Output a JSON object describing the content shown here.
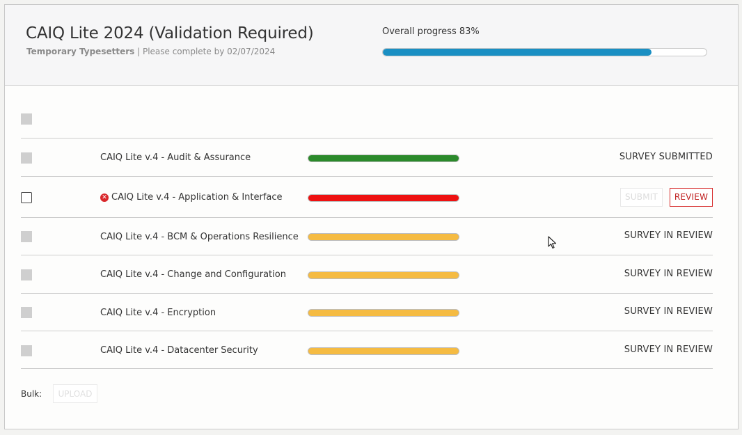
{
  "header": {
    "title": "CAIQ Lite 2024 (Validation Required)",
    "organization": "Temporary Typesetters",
    "separator": " | ",
    "due_text": "Please complete by 02/07/2024",
    "overall_progress_label": "Overall progress 83%",
    "overall_progress_fraction": 0.83
  },
  "colors": {
    "progress_blue": "#1a8fc3",
    "complete_green": "#2b8a2b",
    "error_red": "#ee1111",
    "review_yellow": "#f5bb42"
  },
  "surveys": [
    {
      "name": "CAIQ Lite v.4 - Audit & Assurance",
      "bar_color": "#2b8a2b",
      "status": "SURVEY SUBMITTED",
      "has_error": false
    },
    {
      "name": "CAIQ Lite v.4 - Application & Interface",
      "bar_color": "#ee1111",
      "status": "",
      "has_error": true,
      "submit_label": "SUBMIT",
      "review_label": "REVIEW"
    },
    {
      "name": "CAIQ Lite v.4 - BCM & Operations Resilience",
      "bar_color": "#f5bb42",
      "status": "SURVEY IN REVIEW",
      "has_error": false
    },
    {
      "name": "CAIQ Lite v.4 - Change and Configuration",
      "bar_color": "#f5bb42",
      "status": "SURVEY IN REVIEW",
      "has_error": false
    },
    {
      "name": "CAIQ Lite v.4 - Encryption",
      "bar_color": "#f5bb42",
      "status": "SURVEY IN REVIEW",
      "has_error": false
    },
    {
      "name": "CAIQ Lite v.4 - Datacenter Security",
      "bar_color": "#f5bb42",
      "status": "SURVEY IN REVIEW",
      "has_error": false
    }
  ],
  "bulk": {
    "label": "Bulk:",
    "upload_label": "UPLOAD"
  }
}
